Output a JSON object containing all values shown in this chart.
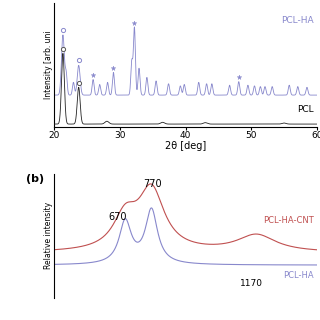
{
  "panel_a": {
    "xlabel": "2θ [deg]",
    "ylabel": "Intensity [arb. uni",
    "xlim": [
      20,
      60
    ],
    "xticks": [
      20,
      30,
      40,
      50,
      60
    ],
    "xticklabels": [
      "20",
      "30",
      "40",
      "50",
      "60"
    ],
    "pcl_ha_label": "PCL-HA",
    "pcl_label": "PCL",
    "pcl_color": "#222222",
    "pclha_color": "#8888cc"
  },
  "panel_b": {
    "title_label": "(b)",
    "ylabel": "Relative intensity",
    "pclhacnt_label": "PCL-HA-CNT",
    "pclha_label": "PCL-HA",
    "peak_770": 770,
    "peak_670": 670,
    "peak_1170": 1170,
    "pclhacnt_color": "#c05050",
    "pclha_color": "#8888cc"
  }
}
